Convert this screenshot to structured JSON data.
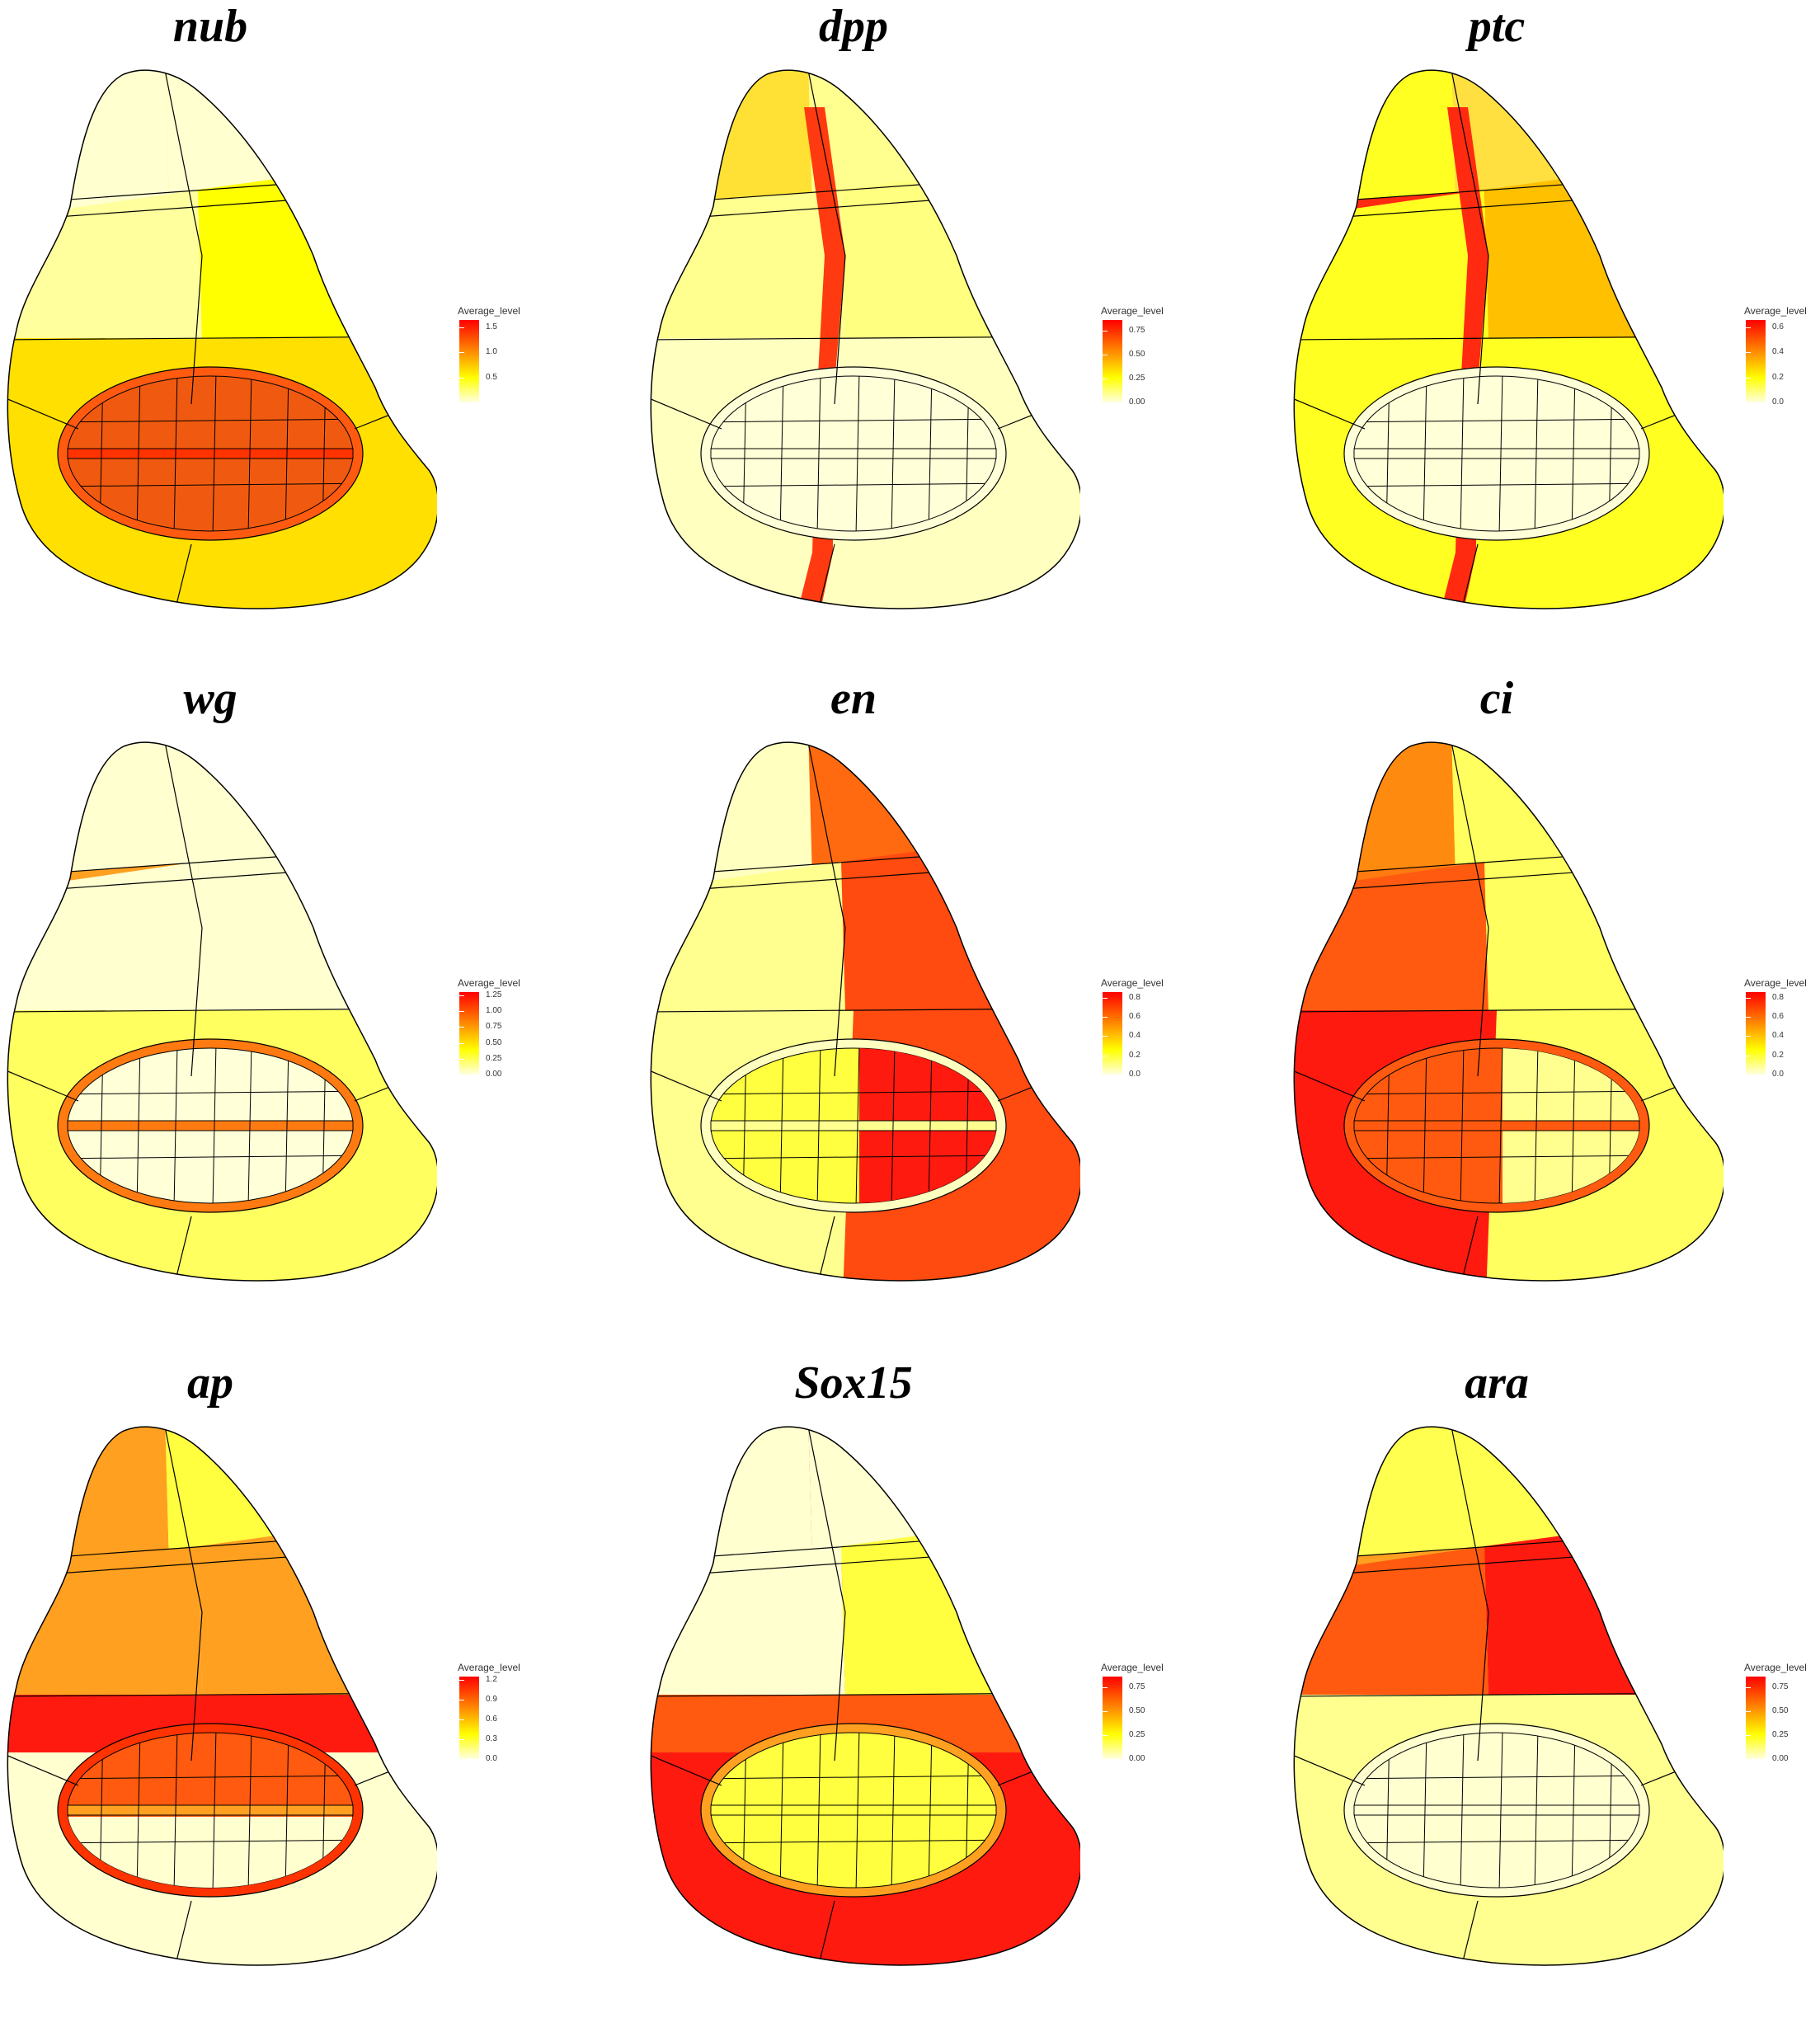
{
  "legend_title": "Average_level",
  "colors": {
    "low": "#ffffe0",
    "mid": "#ffff00",
    "midhigh": "#ff9f00",
    "high": "#ff0000",
    "outline": "#000000"
  },
  "panels": [
    {
      "gene": "nub",
      "ticks": [
        "1.5",
        "1.0",
        "0.5"
      ],
      "tick_values": [
        1.5,
        1.0,
        0.5
      ],
      "max": 1.65
    },
    {
      "gene": "dpp",
      "ticks": [
        "0.75",
        "0.50",
        "0.25",
        "0.00"
      ],
      "tick_values": [
        0.75,
        0.5,
        0.25,
        0.0
      ],
      "max": 0.86
    },
    {
      "gene": "ptc",
      "ticks": [
        "0.6",
        "0.4",
        "0.2",
        "0.0"
      ],
      "tick_values": [
        0.6,
        0.4,
        0.2,
        0.0
      ],
      "max": 0.66
    },
    {
      "gene": "wg",
      "ticks": [
        "1.25",
        "1.00",
        "0.75",
        "0.50",
        "0.25",
        "0.00"
      ],
      "tick_values": [
        1.25,
        1.0,
        0.75,
        0.5,
        0.25,
        0.0
      ],
      "max": 1.3
    },
    {
      "gene": "en",
      "ticks": [
        "0.8",
        "0.6",
        "0.4",
        "0.2",
        "0.0"
      ],
      "tick_values": [
        0.8,
        0.6,
        0.4,
        0.2,
        0.0
      ],
      "max": 0.86
    },
    {
      "gene": "ci",
      "ticks": [
        "0.8",
        "0.6",
        "0.4",
        "0.2",
        "0.0"
      ],
      "tick_values": [
        0.8,
        0.6,
        0.4,
        0.2,
        0.0
      ],
      "max": 0.86
    },
    {
      "gene": "ap",
      "ticks": [
        "1.2",
        "0.9",
        "0.6",
        "0.3",
        "0.0"
      ],
      "tick_values": [
        1.2,
        0.9,
        0.6,
        0.3,
        0.0
      ],
      "max": 1.25
    },
    {
      "gene": "Sox15",
      "ticks": [
        "0.75",
        "0.50",
        "0.25",
        "0.00"
      ],
      "tick_values": [
        0.75,
        0.5,
        0.25,
        0.0
      ],
      "max": 0.86
    },
    {
      "gene": "ara",
      "ticks": [
        "0.75",
        "0.50",
        "0.25",
        "0.00"
      ],
      "tick_values": [
        0.75,
        0.5,
        0.25,
        0.0
      ],
      "max": 0.86
    }
  ],
  "fills": [
    {
      "top_left": "#ffffd0",
      "top_right": "#ffffd0",
      "top_bar": "#ffffd0",
      "mid_left": "#ffff9e",
      "mid_right": "#ffff00",
      "body": "#ffe000",
      "pouch": "#f05a10",
      "pouch_band": "#ff3300",
      "ring": "#ff5a10",
      "hinge_top": "#ffe000"
    },
    {
      "top_left": "#ffe034",
      "top_right": "#ffff90",
      "top_bar": "#ffff90",
      "mid_left": "#ffff90",
      "mid_right": "#ffff80",
      "body": "#ffffc0",
      "pouch": "#ffffd8",
      "pouch_band": "#ffffd8",
      "ring": "#ffffd8",
      "hinge_top": "#ffffc0",
      "stripe": "#ff3a10"
    },
    {
      "top_left": "#ffff22",
      "top_right": "#ffe040",
      "top_bar": "#ff2a10",
      "mid_left": "#ffff22",
      "mid_right": "#ffc000",
      "body": "#ffff22",
      "pouch": "#ffffd8",
      "pouch_band": "#ffffd8",
      "ring": "#ffffd8",
      "hinge_top": "#ffff22",
      "stripe": "#ff2a10"
    },
    {
      "top_left": "#ffffd0",
      "top_right": "#ffffd0",
      "top_bar": "#ffa020",
      "mid_left": "#ffffd0",
      "mid_right": "#ffffd0",
      "body": "#ffff60",
      "pouch": "#ffffd8",
      "pouch_band": "#ff7a10",
      "ring": "#ff7a10",
      "hinge_top": "#ffff60"
    },
    {
      "top_left": "#ffffc0",
      "top_right": "#ff6a10",
      "top_bar": "#ffffc0",
      "mid_left": "#ffff90",
      "mid_right": "#ff4a10",
      "body": "#ffff90",
      "pouch": "#ffff40",
      "pouch_band": "#ffff90",
      "ring": "#ffffc0",
      "hinge_top": "#ffff90",
      "right_body": "#ff4a10",
      "pouch_right": "#ff1a10"
    },
    {
      "top_left": "#ff8a10",
      "top_right": "#ffff60",
      "top_bar": "#ff7a10",
      "mid_left": "#ff5a10",
      "mid_right": "#ffff60",
      "body": "#ffff60",
      "pouch": "#ff5a10",
      "pouch_band": "#ff5a10",
      "ring": "#ff5a10",
      "hinge_top": "#ffff60",
      "left_body": "#ff1a10",
      "pouch_right": "#ffff90"
    },
    {
      "top_left": "#ffa020",
      "top_right": "#ffff40",
      "top_bar": "#ffa020",
      "mid_left": "#ffa020",
      "mid_right": "#ffa020",
      "body": "#ffffd0",
      "pouch": "#ff5a10",
      "pouch_band": "#ffa020",
      "ring": "#ff3300",
      "hinge_top": "#ff1a10",
      "pouch_lower": "#ffffd0"
    },
    {
      "top_left": "#ffffd0",
      "top_right": "#ffffd0",
      "top_bar": "#ffffd0",
      "mid_left": "#ffffd0",
      "mid_right": "#ffff40",
      "body": "#ff1a10",
      "pouch": "#ffff40",
      "pouch_band": "#ffff40",
      "ring": "#ffa020",
      "hinge_top": "#ff5a10"
    },
    {
      "top_left": "#ffff50",
      "top_right": "#ffff50",
      "top_bar": "#ffa020",
      "mid_left": "#ff5a10",
      "mid_right": "#ff1a10",
      "body": "#ffff90",
      "pouch": "#ffffd0",
      "pouch_band": "#ffffd0",
      "ring": "#ffffd0",
      "hinge_top": "#ffff90"
    }
  ]
}
